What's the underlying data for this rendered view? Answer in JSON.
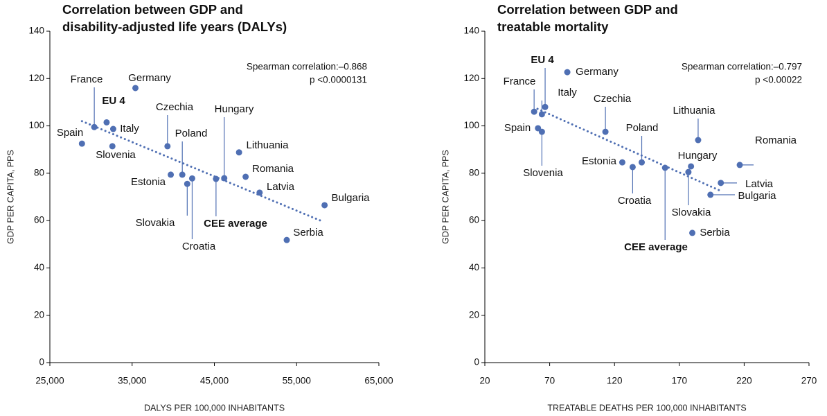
{
  "chart_data": [
    {
      "type": "scatter",
      "title": [
        "Correlation between GDP and",
        "disability-adjusted life years (DALYs)"
      ],
      "annotations": [
        "Spearman correlation:–0.868",
        "p <0.0000131"
      ],
      "x_label": "DALYS PER 100,000 INHABITANTS",
      "y_label": "GDP PER CAPITA, PPS",
      "color": "#4f6fb3",
      "labels": [
        "Spain",
        "France",
        "EU 4",
        "Italy",
        "Slovenia",
        "Germany",
        "Czechia",
        "Estonia",
        "Poland",
        "Slovakia",
        "Croatia",
        "Hungary",
        "CEE average",
        "Lithuania",
        "Romania",
        "Latvia",
        "Bulgaria",
        "Serbia"
      ],
      "x": [
        28900,
        30400,
        31900,
        32700,
        32600,
        35400,
        39300,
        39700,
        41100,
        41700,
        42300,
        46200,
        45200,
        48000,
        48800,
        50500,
        58400,
        53800
      ],
      "values": [
        92.5,
        99.5,
        101.5,
        98.7,
        91.4,
        116,
        91.4,
        79.4,
        79.4,
        75.5,
        77.8,
        77.9,
        77.6,
        88.8,
        78.5,
        71.8,
        66.5,
        51.8
      ],
      "trendline": {
        "x": [
          28900,
          57900
        ],
        "y": [
          102,
          60
        ]
      },
      "xlim": [
        25000,
        65000
      ],
      "xticks": [
        {
          "value": 25000,
          "label": "25,000"
        },
        {
          "value": 35000,
          "label": "35,000"
        },
        {
          "value": 45000,
          "label": "45,000"
        },
        {
          "value": 55000,
          "label": "55,000"
        },
        {
          "value": 65000,
          "label": "65,000"
        }
      ],
      "ylim": [
        0,
        140
      ],
      "yticks": [
        0,
        20,
        40,
        60,
        80,
        100,
        120,
        140
      ]
    },
    {
      "type": "scatter",
      "title": [
        "Correlation between GDP and",
        "treatable mortality"
      ],
      "annotations": [
        "Spearman correlation:–0.797",
        "p <0.00022"
      ],
      "x_label": "TREATABLE DEATHS PER 100,000 INHABITANTS",
      "y_label": "GDP PER CAPITA, PPS",
      "color": "#4f6fb3",
      "labels": [
        "France",
        "EU 4",
        "Italy",
        "Germany",
        "Spain",
        "Slovenia",
        "Czechia",
        "Estonia",
        "Poland",
        "Croatia",
        "CEE average",
        "Lithuania",
        "Hungary",
        "Slovakia",
        "Romania",
        "Latvia",
        "Bulgaria",
        "Serbia"
      ],
      "x": [
        58,
        66.5,
        64,
        83.6,
        61,
        64,
        113,
        126,
        141,
        134,
        159,
        184.5,
        179,
        177,
        216.6,
        202,
        194,
        180
      ],
      "values": [
        106,
        108,
        104.9,
        122.7,
        99,
        97.5,
        97.5,
        84.6,
        84.6,
        82.6,
        82.3,
        94,
        82.9,
        80.5,
        83.5,
        75.9,
        70.9,
        54.8
      ],
      "trendline": {
        "x": [
          60.6,
          201.6
        ],
        "y": [
          107.2,
          72.6
        ]
      },
      "xlim": [
        20,
        270
      ],
      "xticks": [
        20,
        70,
        120,
        170,
        220,
        270
      ],
      "ylim": [
        0,
        140
      ],
      "yticks": [
        0,
        20,
        40,
        60,
        80,
        100,
        120,
        140
      ]
    }
  ]
}
